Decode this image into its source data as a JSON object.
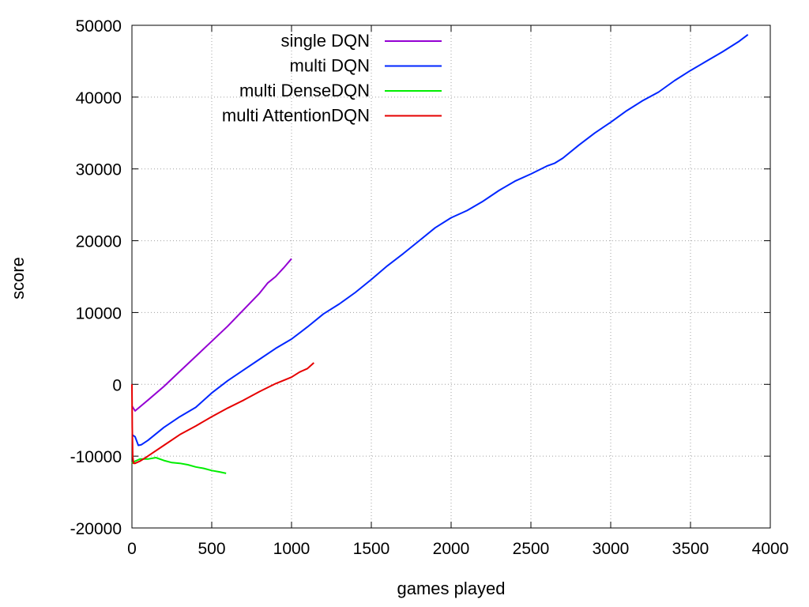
{
  "chart_data": {
    "type": "line",
    "title": "",
    "xlabel": "games played",
    "ylabel": "score",
    "xlim": [
      0,
      4000
    ],
    "ylim": [
      -20000,
      50000
    ],
    "xticks": [
      "0",
      "500",
      "1000",
      "1500",
      "2000",
      "2500",
      "3000",
      "3500",
      "4000"
    ],
    "yticks": [
      "-20000",
      "-10000",
      "0",
      "10000",
      "20000",
      "30000",
      "40000",
      "50000"
    ],
    "grid": true,
    "legend_position": "top-center",
    "series": [
      {
        "name": "single DQN",
        "color": "#9400d3",
        "x": [
          0,
          20,
          100,
          200,
          300,
          400,
          500,
          600,
          700,
          800,
          850,
          900,
          950,
          1000
        ],
        "y": [
          -3000,
          -3700,
          -2200,
          -300,
          1800,
          3900,
          6000,
          8100,
          10400,
          12700,
          14100,
          15000,
          16200,
          17500
        ]
      },
      {
        "name": "multi DQN",
        "color": "#0026ff",
        "x": [
          0,
          20,
          40,
          60,
          100,
          200,
          300,
          400,
          500,
          600,
          700,
          800,
          900,
          1000,
          1100,
          1200,
          1300,
          1400,
          1500,
          1600,
          1700,
          1800,
          1900,
          2000,
          2100,
          2200,
          2300,
          2400,
          2500,
          2600,
          2650,
          2700,
          2800,
          2900,
          3000,
          3100,
          3200,
          3300,
          3400,
          3500,
          3600,
          3700,
          3800,
          3860
        ],
        "y": [
          -7000,
          -7300,
          -8500,
          -8400,
          -7800,
          -6000,
          -4500,
          -3200,
          -1200,
          500,
          2000,
          3500,
          5000,
          6300,
          8000,
          9800,
          11200,
          12800,
          14600,
          16500,
          18200,
          20000,
          21800,
          23200,
          24200,
          25500,
          27000,
          28300,
          29300,
          30400,
          30800,
          31500,
          33300,
          35000,
          36500,
          38100,
          39500,
          40700,
          42300,
          43700,
          45000,
          46300,
          47700,
          48700
        ]
      },
      {
        "name": "multi DenseDQN",
        "color": "#00ee00",
        "x": [
          0,
          20,
          50,
          100,
          150,
          200,
          250,
          300,
          350,
          400,
          450,
          500,
          550,
          590
        ],
        "y": [
          -11000,
          -10700,
          -10400,
          -10400,
          -10200,
          -10600,
          -10900,
          -11000,
          -11200,
          -11500,
          -11700,
          -12000,
          -12200,
          -12400
        ]
      },
      {
        "name": "multi AttentionDQN",
        "color": "#e60000",
        "x": [
          0,
          2,
          5,
          10,
          20,
          50,
          100,
          200,
          300,
          400,
          500,
          600,
          700,
          800,
          900,
          1000,
          1050,
          1100,
          1140
        ],
        "y": [
          0,
          -6000,
          -10000,
          -11000,
          -11000,
          -10700,
          -10000,
          -8500,
          -7000,
          -5800,
          -4500,
          -3300,
          -2200,
          -1000,
          100,
          1000,
          1700,
          2200,
          3000
        ]
      }
    ]
  }
}
